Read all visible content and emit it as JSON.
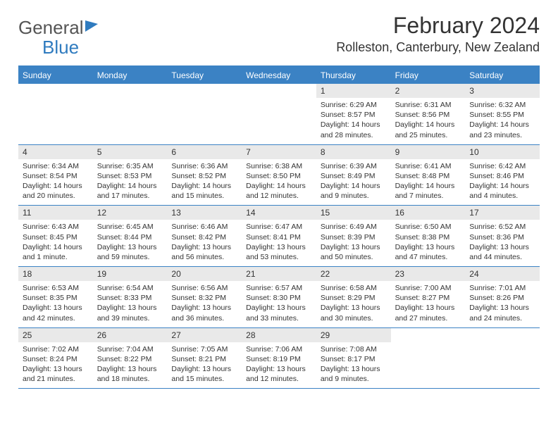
{
  "logo": {
    "text_gray": "General",
    "text_blue": "Blue"
  },
  "title": "February 2024",
  "location": "Rolleston, Canterbury, New Zealand",
  "colors": {
    "header_bg": "#3b82c4",
    "header_text": "#ffffff",
    "daynum_bg": "#e9e9e9",
    "border": "#3b82c4",
    "text": "#333333",
    "page_bg": "#ffffff"
  },
  "day_headers": [
    "Sunday",
    "Monday",
    "Tuesday",
    "Wednesday",
    "Thursday",
    "Friday",
    "Saturday"
  ],
  "weeks": [
    [
      {
        "n": "",
        "sr": "",
        "ss": "",
        "dl": ""
      },
      {
        "n": "",
        "sr": "",
        "ss": "",
        "dl": ""
      },
      {
        "n": "",
        "sr": "",
        "ss": "",
        "dl": ""
      },
      {
        "n": "",
        "sr": "",
        "ss": "",
        "dl": ""
      },
      {
        "n": "1",
        "sr": "Sunrise: 6:29 AM",
        "ss": "Sunset: 8:57 PM",
        "dl": "Daylight: 14 hours and 28 minutes."
      },
      {
        "n": "2",
        "sr": "Sunrise: 6:31 AM",
        "ss": "Sunset: 8:56 PM",
        "dl": "Daylight: 14 hours and 25 minutes."
      },
      {
        "n": "3",
        "sr": "Sunrise: 6:32 AM",
        "ss": "Sunset: 8:55 PM",
        "dl": "Daylight: 14 hours and 23 minutes."
      }
    ],
    [
      {
        "n": "4",
        "sr": "Sunrise: 6:34 AM",
        "ss": "Sunset: 8:54 PM",
        "dl": "Daylight: 14 hours and 20 minutes."
      },
      {
        "n": "5",
        "sr": "Sunrise: 6:35 AM",
        "ss": "Sunset: 8:53 PM",
        "dl": "Daylight: 14 hours and 17 minutes."
      },
      {
        "n": "6",
        "sr": "Sunrise: 6:36 AM",
        "ss": "Sunset: 8:52 PM",
        "dl": "Daylight: 14 hours and 15 minutes."
      },
      {
        "n": "7",
        "sr": "Sunrise: 6:38 AM",
        "ss": "Sunset: 8:50 PM",
        "dl": "Daylight: 14 hours and 12 minutes."
      },
      {
        "n": "8",
        "sr": "Sunrise: 6:39 AM",
        "ss": "Sunset: 8:49 PM",
        "dl": "Daylight: 14 hours and 9 minutes."
      },
      {
        "n": "9",
        "sr": "Sunrise: 6:41 AM",
        "ss": "Sunset: 8:48 PM",
        "dl": "Daylight: 14 hours and 7 minutes."
      },
      {
        "n": "10",
        "sr": "Sunrise: 6:42 AM",
        "ss": "Sunset: 8:46 PM",
        "dl": "Daylight: 14 hours and 4 minutes."
      }
    ],
    [
      {
        "n": "11",
        "sr": "Sunrise: 6:43 AM",
        "ss": "Sunset: 8:45 PM",
        "dl": "Daylight: 14 hours and 1 minute."
      },
      {
        "n": "12",
        "sr": "Sunrise: 6:45 AM",
        "ss": "Sunset: 8:44 PM",
        "dl": "Daylight: 13 hours and 59 minutes."
      },
      {
        "n": "13",
        "sr": "Sunrise: 6:46 AM",
        "ss": "Sunset: 8:42 PM",
        "dl": "Daylight: 13 hours and 56 minutes."
      },
      {
        "n": "14",
        "sr": "Sunrise: 6:47 AM",
        "ss": "Sunset: 8:41 PM",
        "dl": "Daylight: 13 hours and 53 minutes."
      },
      {
        "n": "15",
        "sr": "Sunrise: 6:49 AM",
        "ss": "Sunset: 8:39 PM",
        "dl": "Daylight: 13 hours and 50 minutes."
      },
      {
        "n": "16",
        "sr": "Sunrise: 6:50 AM",
        "ss": "Sunset: 8:38 PM",
        "dl": "Daylight: 13 hours and 47 minutes."
      },
      {
        "n": "17",
        "sr": "Sunrise: 6:52 AM",
        "ss": "Sunset: 8:36 PM",
        "dl": "Daylight: 13 hours and 44 minutes."
      }
    ],
    [
      {
        "n": "18",
        "sr": "Sunrise: 6:53 AM",
        "ss": "Sunset: 8:35 PM",
        "dl": "Daylight: 13 hours and 42 minutes."
      },
      {
        "n": "19",
        "sr": "Sunrise: 6:54 AM",
        "ss": "Sunset: 8:33 PM",
        "dl": "Daylight: 13 hours and 39 minutes."
      },
      {
        "n": "20",
        "sr": "Sunrise: 6:56 AM",
        "ss": "Sunset: 8:32 PM",
        "dl": "Daylight: 13 hours and 36 minutes."
      },
      {
        "n": "21",
        "sr": "Sunrise: 6:57 AM",
        "ss": "Sunset: 8:30 PM",
        "dl": "Daylight: 13 hours and 33 minutes."
      },
      {
        "n": "22",
        "sr": "Sunrise: 6:58 AM",
        "ss": "Sunset: 8:29 PM",
        "dl": "Daylight: 13 hours and 30 minutes."
      },
      {
        "n": "23",
        "sr": "Sunrise: 7:00 AM",
        "ss": "Sunset: 8:27 PM",
        "dl": "Daylight: 13 hours and 27 minutes."
      },
      {
        "n": "24",
        "sr": "Sunrise: 7:01 AM",
        "ss": "Sunset: 8:26 PM",
        "dl": "Daylight: 13 hours and 24 minutes."
      }
    ],
    [
      {
        "n": "25",
        "sr": "Sunrise: 7:02 AM",
        "ss": "Sunset: 8:24 PM",
        "dl": "Daylight: 13 hours and 21 minutes."
      },
      {
        "n": "26",
        "sr": "Sunrise: 7:04 AM",
        "ss": "Sunset: 8:22 PM",
        "dl": "Daylight: 13 hours and 18 minutes."
      },
      {
        "n": "27",
        "sr": "Sunrise: 7:05 AM",
        "ss": "Sunset: 8:21 PM",
        "dl": "Daylight: 13 hours and 15 minutes."
      },
      {
        "n": "28",
        "sr": "Sunrise: 7:06 AM",
        "ss": "Sunset: 8:19 PM",
        "dl": "Daylight: 13 hours and 12 minutes."
      },
      {
        "n": "29",
        "sr": "Sunrise: 7:08 AM",
        "ss": "Sunset: 8:17 PM",
        "dl": "Daylight: 13 hours and 9 minutes."
      },
      {
        "n": "",
        "sr": "",
        "ss": "",
        "dl": ""
      },
      {
        "n": "",
        "sr": "",
        "ss": "",
        "dl": ""
      }
    ]
  ]
}
